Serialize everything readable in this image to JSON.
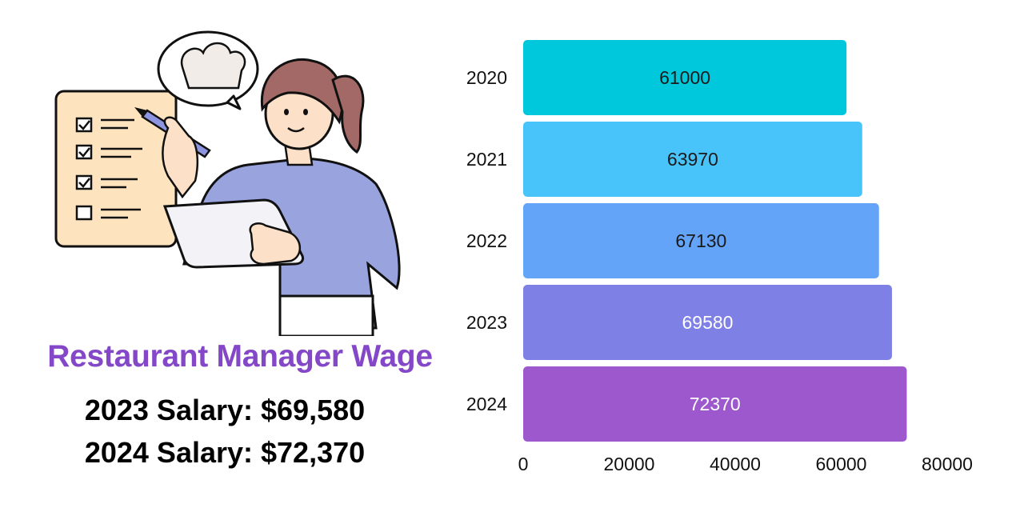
{
  "infographic": {
    "title": "Restaurant Manager Wage",
    "salary_2023": "2023 Salary: $69,580",
    "salary_2024": "2024 Salary: $72,370"
  },
  "illustration": {
    "description_icons": [
      "checklist-icon",
      "chef-hat-icon",
      "pen-icon",
      "tablet-icon"
    ]
  },
  "chart_data": {
    "type": "bar",
    "orientation": "horizontal",
    "categories": [
      "2020",
      "2021",
      "2022",
      "2023",
      "2024"
    ],
    "values": [
      61000,
      63970,
      67130,
      69580,
      72370
    ],
    "data_labels": [
      "61000",
      "63970",
      "67130",
      "69580",
      "72370"
    ],
    "bar_colors": [
      "#00c8dc",
      "#48c4fb",
      "#64a4f8",
      "#7e80e5",
      "#9c58cc"
    ],
    "label_colors": [
      "#1a1a1a",
      "#1a1a1a",
      "#1a1a1a",
      "#ffffff",
      "#ffffff"
    ],
    "xlim": [
      0,
      80000
    ],
    "x_ticks": [
      0,
      20000,
      40000,
      60000,
      80000
    ],
    "x_tick_labels": [
      "0",
      "20000",
      "40000",
      "60000",
      "80000"
    ],
    "title": "",
    "xlabel": "",
    "ylabel": "",
    "grid": false,
    "legend": "none"
  }
}
